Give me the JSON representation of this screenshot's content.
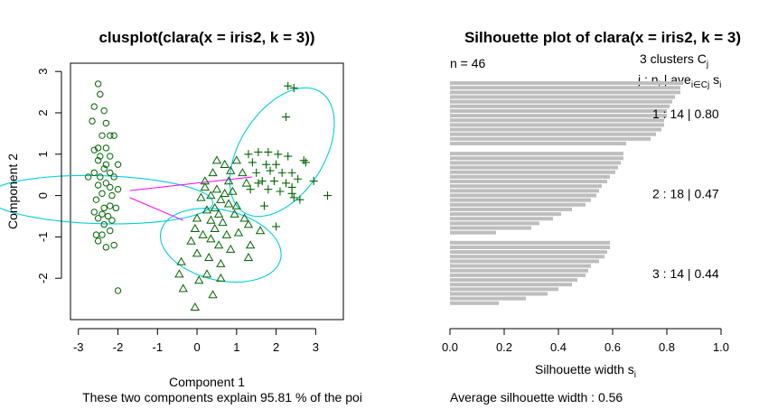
{
  "chart_data": [
    {
      "type": "scatter",
      "title": "clusplot(clara(x = iris2, k = 3))",
      "xlabel": "Component 1",
      "ylabel": "Component 2",
      "subtitle": "These two components explain 95.81 % of the poi",
      "xlim": [
        -3.2,
        3.7
      ],
      "ylim": [
        -3.0,
        3.2
      ],
      "xticks": [
        -3,
        -2,
        -1,
        0,
        1,
        2,
        3
      ],
      "yticks": [
        -2,
        -1,
        0,
        1,
        2,
        3
      ],
      "colors": {
        "ellipse": "#00CCE0",
        "points": "#006400",
        "lines": "#FF00FF"
      },
      "ellipses": [
        {
          "cx": -2.45,
          "cy": -0.1,
          "rx": 0.58,
          "ry": 2.85,
          "angle": 88.5
        },
        {
          "cx": 0.6,
          "cy": -1.2,
          "rx": 0.85,
          "ry": 1.55,
          "angle": 78
        },
        {
          "cx": 2.15,
          "cy": 1.05,
          "rx": 1.75,
          "ry": 1.05,
          "angle": 55
        }
      ],
      "links": [
        {
          "x1": -1.7,
          "y1": 0.12,
          "x2": 1.4,
          "y2": 0.45
        },
        {
          "x1": -1.7,
          "y1": -0.05,
          "x2": -0.35,
          "y2": -0.6
        }
      ],
      "series": [
        {
          "marker": "circle",
          "points": [
            [
              -2.5,
              2.7
            ],
            [
              -2.45,
              2.45
            ],
            [
              -2.6,
              2.15
            ],
            [
              -2.35,
              2.05
            ],
            [
              -2.65,
              1.8
            ],
            [
              -2.3,
              1.75
            ],
            [
              -2.2,
              1.45
            ],
            [
              -2.4,
              1.45
            ],
            [
              -2.1,
              1.45
            ],
            [
              -2.5,
              1.15
            ],
            [
              -2.3,
              1.15
            ],
            [
              -2.6,
              1.1
            ],
            [
              -2.2,
              0.95
            ],
            [
              -2.5,
              0.85
            ],
            [
              -2.3,
              0.75
            ],
            [
              -2.0,
              0.75
            ],
            [
              -2.35,
              0.65
            ],
            [
              -2.6,
              0.55
            ],
            [
              -2.2,
              0.55
            ],
            [
              -2.45,
              0.45
            ],
            [
              -2.75,
              0.45
            ],
            [
              -2.1,
              0.45
            ],
            [
              -2.3,
              0.3
            ],
            [
              -2.5,
              0.25
            ],
            [
              -2.2,
              0.2
            ],
            [
              -2.0,
              0.15
            ],
            [
              -2.4,
              0.05
            ],
            [
              -2.15,
              0.0
            ],
            [
              -2.55,
              -0.1
            ],
            [
              -2.35,
              -0.3
            ],
            [
              -2.05,
              -0.3
            ],
            [
              -2.6,
              -0.4
            ],
            [
              -2.4,
              -0.45
            ],
            [
              -2.25,
              -0.5
            ],
            [
              -2.5,
              -0.55
            ],
            [
              -2.15,
              -0.6
            ],
            [
              -2.35,
              -0.7
            ],
            [
              -2.55,
              -0.95
            ],
            [
              -2.4,
              -0.95
            ],
            [
              -2.2,
              -0.85
            ],
            [
              -2.1,
              -1.2
            ],
            [
              -2.3,
              -1.25
            ],
            [
              -2.5,
              -1.1
            ],
            [
              -2.0,
              -2.3
            ],
            [
              -2.2,
              -0.25
            ],
            [
              -2.45,
              0.95
            ]
          ]
        },
        {
          "marker": "triangle",
          "points": [
            [
              0.5,
              0.85
            ],
            [
              0.7,
              0.75
            ],
            [
              1.0,
              0.85
            ],
            [
              0.4,
              0.55
            ],
            [
              1.15,
              0.55
            ],
            [
              0.2,
              0.35
            ],
            [
              0.8,
              0.35
            ],
            [
              0.5,
              0.15
            ],
            [
              0.7,
              0.05
            ],
            [
              0.35,
              0.0
            ],
            [
              0.9,
              0.1
            ],
            [
              1.25,
              0.3
            ],
            [
              0.1,
              -0.05
            ],
            [
              0.6,
              -0.1
            ],
            [
              0.8,
              -0.2
            ],
            [
              1.0,
              -0.25
            ],
            [
              0.45,
              -0.3
            ],
            [
              0.25,
              -0.35
            ],
            [
              0.55,
              -0.45
            ],
            [
              0.95,
              -0.45
            ],
            [
              0.0,
              -0.55
            ],
            [
              1.2,
              -0.55
            ],
            [
              0.35,
              -0.6
            ],
            [
              0.65,
              -0.65
            ],
            [
              1.3,
              -0.7
            ],
            [
              -0.05,
              -0.8
            ],
            [
              0.45,
              -0.8
            ],
            [
              0.15,
              -0.95
            ],
            [
              0.75,
              -0.95
            ],
            [
              1.05,
              -0.9
            ],
            [
              0.35,
              -1.05
            ],
            [
              -0.15,
              -1.1
            ],
            [
              0.55,
              -1.2
            ],
            [
              0.85,
              -1.3
            ],
            [
              0.0,
              -1.4
            ],
            [
              0.3,
              -1.5
            ],
            [
              1.3,
              -1.5
            ],
            [
              0.6,
              -1.65
            ],
            [
              -0.4,
              -1.6
            ],
            [
              0.25,
              -1.9
            ],
            [
              -0.45,
              -1.9
            ],
            [
              0.05,
              -2.05
            ],
            [
              -0.35,
              -2.25
            ],
            [
              0.4,
              -2.4
            ],
            [
              -0.05,
              -2.7
            ],
            [
              1.6,
              -0.85
            ],
            [
              0.6,
              -2.0
            ],
            [
              1.35,
              -1.2
            ],
            [
              0.2,
              0.2
            ],
            [
              0.85,
              0.6
            ]
          ]
        },
        {
          "marker": "plus",
          "points": [
            [
              2.3,
              2.65
            ],
            [
              2.45,
              2.6
            ],
            [
              2.25,
              1.9
            ],
            [
              1.3,
              1.0
            ],
            [
              1.55,
              1.05
            ],
            [
              1.8,
              1.05
            ],
            [
              2.05,
              1.0
            ],
            [
              2.3,
              0.95
            ],
            [
              1.4,
              0.8
            ],
            [
              1.75,
              0.75
            ],
            [
              2.0,
              0.75
            ],
            [
              2.7,
              0.85
            ],
            [
              2.75,
              0.8
            ],
            [
              1.5,
              0.55
            ],
            [
              1.85,
              0.6
            ],
            [
              2.15,
              0.55
            ],
            [
              2.4,
              0.55
            ],
            [
              1.65,
              0.35
            ],
            [
              1.95,
              0.35
            ],
            [
              2.25,
              0.3
            ],
            [
              2.55,
              0.4
            ],
            [
              2.95,
              0.35
            ],
            [
              1.35,
              0.15
            ],
            [
              1.8,
              0.15
            ],
            [
              2.1,
              0.1
            ],
            [
              2.4,
              0.05
            ],
            [
              2.6,
              -0.1
            ],
            [
              2.4,
              0.2
            ],
            [
              1.7,
              -0.25
            ],
            [
              2.0,
              -0.75
            ],
            [
              3.3,
              0.0
            ],
            [
              2.45,
              -0.05
            ],
            [
              1.55,
              0.3
            ]
          ]
        }
      ]
    },
    {
      "type": "bar",
      "title": "Silhouette plot of clara(x = iris2, k = 3)",
      "xlabel": "Silhouette width s",
      "xlabel_sub": "i",
      "n_label": "n = 46",
      "avg_label": "Average silhouette width :  0.56",
      "legend_head": "3  clusters  C",
      "legend_head_sub": "j",
      "legend_stats": "j :  n",
      "legend_stats_sub": "j",
      "legend_stats_mid": " | ave",
      "legend_stats_sub2": "i∈Cj",
      "legend_stats_end": "  s",
      "legend_stats_sub3": "i",
      "xlim": [
        0,
        1
      ],
      "xticks": [
        "0.0",
        "0.2",
        "0.4",
        "0.6",
        "0.8",
        "1.0"
      ],
      "bar_color": "#BEBEBE",
      "clusters": [
        {
          "label": "1 :   14  |  0.80",
          "values": [
            0.86,
            0.85,
            0.85,
            0.83,
            0.82,
            0.81,
            0.8,
            0.8,
            0.79,
            0.79,
            0.78,
            0.76,
            0.74,
            0.65
          ]
        },
        {
          "label": "2 :   18  |  0.47",
          "values": [
            0.64,
            0.64,
            0.63,
            0.62,
            0.61,
            0.59,
            0.58,
            0.56,
            0.55,
            0.54,
            0.52,
            0.5,
            0.45,
            0.41,
            0.38,
            0.33,
            0.3,
            0.17
          ]
        },
        {
          "label": "3 :   14  |  0.44",
          "values": [
            0.59,
            0.59,
            0.58,
            0.57,
            0.55,
            0.52,
            0.51,
            0.5,
            0.47,
            0.45,
            0.4,
            0.36,
            0.28,
            0.18
          ]
        }
      ]
    }
  ]
}
